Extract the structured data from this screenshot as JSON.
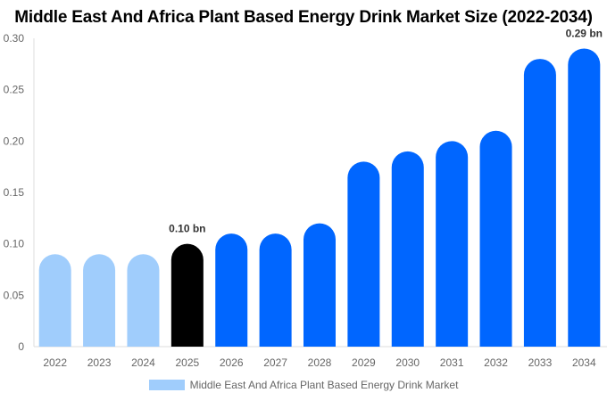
{
  "chart_data": {
    "type": "bar",
    "title": "Middle East And Africa Plant Based Energy Drink Market Size (2022-2034)",
    "categories": [
      "2022",
      "2023",
      "2024",
      "2025",
      "2026",
      "2027",
      "2028",
      "2029",
      "2030",
      "2031",
      "2032",
      "2033",
      "2034"
    ],
    "series": [
      {
        "name": "Middle East And Africa Plant Based Energy Drink Market",
        "values": [
          0.09,
          0.09,
          0.09,
          0.1,
          0.11,
          0.11,
          0.12,
          0.18,
          0.19,
          0.2,
          0.21,
          0.28,
          0.29
        ]
      }
    ],
    "data_labels": {
      "3": "0.10 bn",
      "12": "0.29 bn"
    },
    "ylim": [
      0,
      0.3
    ],
    "yticks": [
      "0",
      "0.05",
      "0.10",
      "0.15",
      "0.20",
      "0.25",
      "0.30"
    ],
    "xlabel": "",
    "ylabel": "",
    "grid": false,
    "legend_position": "bottom",
    "colors": {
      "historical": "#a0cdfc",
      "current": "#000000",
      "forecast": "#0066ff"
    }
  }
}
